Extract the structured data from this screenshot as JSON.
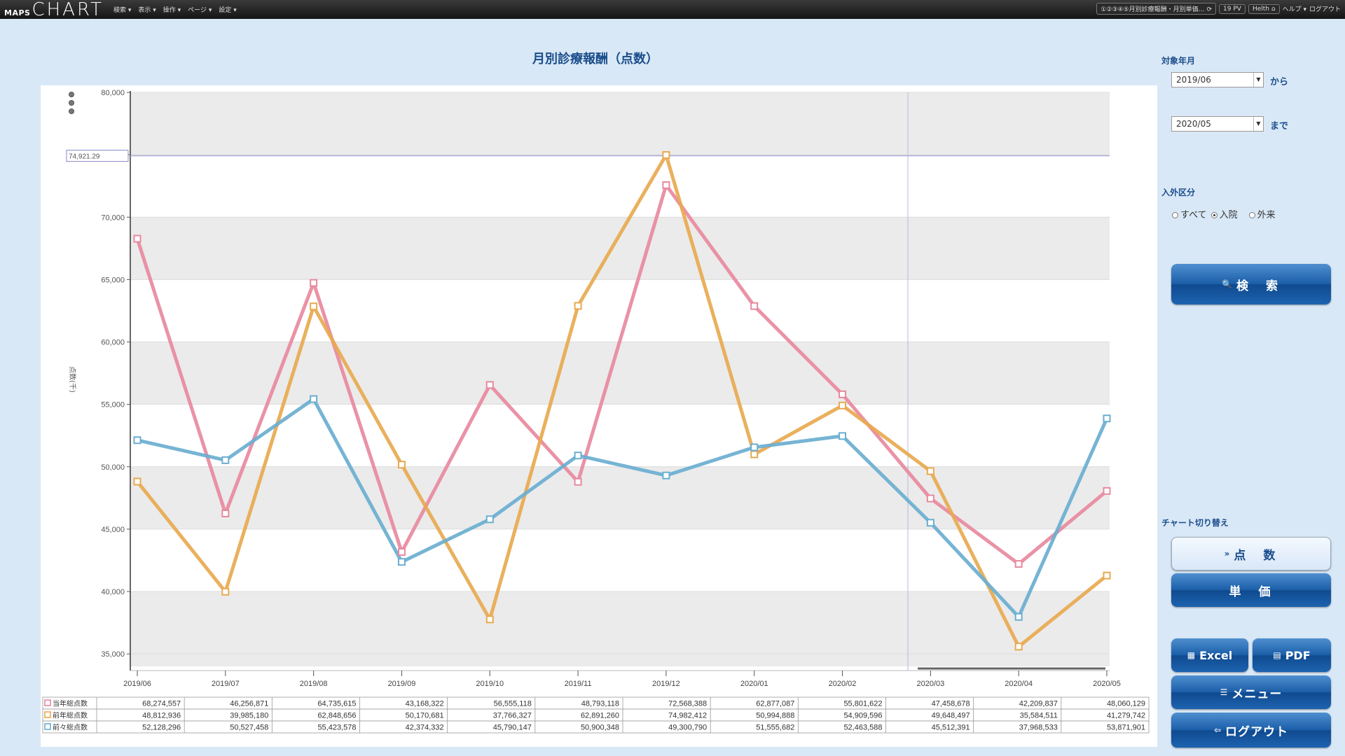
{
  "topbar": {
    "logo_small": "MAPS",
    "logo_big": "CHART",
    "menu": [
      "検索 ▾",
      "表示 ▾",
      "操作 ▾",
      "ページ ▾",
      "設定 ▾"
    ],
    "breadcrumb": "①②③④⑤月別診療報酬・月別単価…",
    "pv": "19 PV",
    "user": "Helth",
    "help": "ヘルプ ▾",
    "logout": "ログアウト"
  },
  "controls": {
    "period_label": "対象年月",
    "from_value": "2019/06",
    "from_suffix": "から",
    "to_value": "2020/05",
    "to_suffix": "まで",
    "inout_label": "入外区分",
    "radio_all": "すべて",
    "radio_inpatient": "入院",
    "radio_outpatient": "外来",
    "search_button": "検　索",
    "chart_switch_label": "チャート切り替え",
    "points_button": "点　数",
    "unit_price_button": "単　価",
    "excel_button": "Excel",
    "pdf_button": "PDF",
    "menu_button": "メニュー",
    "logout_button": "ログアウト"
  },
  "chart_data": {
    "type": "line",
    "title": "月別診療報酬（点数）",
    "ylabel": "点数(千)",
    "ylim": [
      34000,
      80000
    ],
    "yticks": [
      35000,
      40000,
      45000,
      50000,
      55000,
      60000,
      65000,
      70000,
      75000,
      80000
    ],
    "ytick_labels": [
      "35,000",
      "40,000",
      "45,000",
      "50,000",
      "55,000",
      "60,000",
      "65,000",
      "70,000",
      "",
      "80,000"
    ],
    "cursor_value": 74921.29,
    "cursor_label": "74,921.29",
    "categories": [
      "2019/06",
      "2019/07",
      "2019/08",
      "2019/09",
      "2019/10",
      "2019/11",
      "2019/12",
      "2020/01",
      "2020/02",
      "2020/03",
      "2020/04",
      "2020/05"
    ],
    "series": [
      {
        "name": "当年総点数",
        "color": "#e8899e",
        "values": [
          68274.557,
          46256.871,
          64735.615,
          43168.322,
          56555.118,
          48793.118,
          72568.388,
          62877.087,
          55801.622,
          47458.678,
          42209.837,
          48060.129
        ],
        "labels": [
          "68,274,557",
          "46,256,871",
          "64,735,615",
          "43,168,322",
          "56,555,118",
          "48,793,118",
          "72,568,388",
          "62,877,087",
          "55,801,622",
          "47,458,678",
          "42,209,837",
          "48,060,129"
        ]
      },
      {
        "name": "前年総点数",
        "color": "#e8a94f",
        "values": [
          48812.936,
          39985.18,
          62848.656,
          50170.681,
          37766.327,
          62891.26,
          74982.412,
          50994.888,
          54909.596,
          49648.497,
          35584.511,
          41279.742
        ],
        "labels": [
          "48,812,936",
          "39,985,180",
          "62,848,656",
          "50,170,681",
          "37,766,327",
          "62,891,260",
          "74,982,412",
          "50,994,888",
          "54,909,596",
          "49,648,497",
          "35,584,511",
          "41,279,742"
        ]
      },
      {
        "name": "前々総点数",
        "color": "#6aaed0",
        "values": [
          52128.296,
          50527.458,
          55423.578,
          42374.332,
          45790.147,
          50900.348,
          49300.79,
          51555.682,
          52463.588,
          45512.391,
          37968.533,
          53871.901
        ],
        "labels": [
          "52,128,296",
          "50,527,458",
          "55,423,578",
          "42,374,332",
          "45,790,147",
          "50,900,348",
          "49,300,790",
          "51,555,682",
          "52,463,588",
          "45,512,391",
          "37,968,533",
          "53,871,901"
        ]
      }
    ],
    "grid": "alternating bands"
  }
}
